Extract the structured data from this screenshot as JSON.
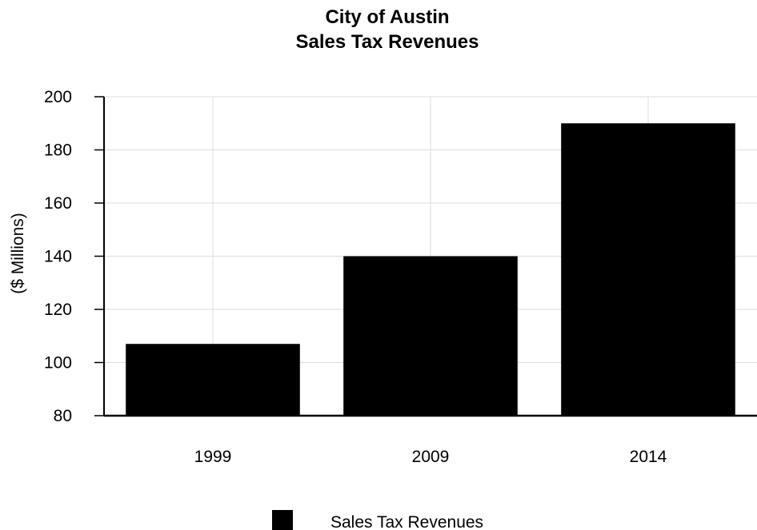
{
  "chart_data": {
    "type": "bar",
    "title": "City of Austin",
    "subtitle": "Sales Tax Revenues",
    "xlabel": "",
    "ylabel": "($ Millions)",
    "categories": [
      "1999",
      "2009",
      "2014"
    ],
    "series": [
      {
        "name": "Sales Tax Revenues",
        "values": [
          107,
          140,
          190
        ],
        "color": "#000000"
      }
    ],
    "ylim": [
      80,
      200
    ],
    "yticks": [
      80,
      100,
      120,
      140,
      160,
      180,
      200
    ],
    "grid": true,
    "legend": "bottom-center"
  }
}
